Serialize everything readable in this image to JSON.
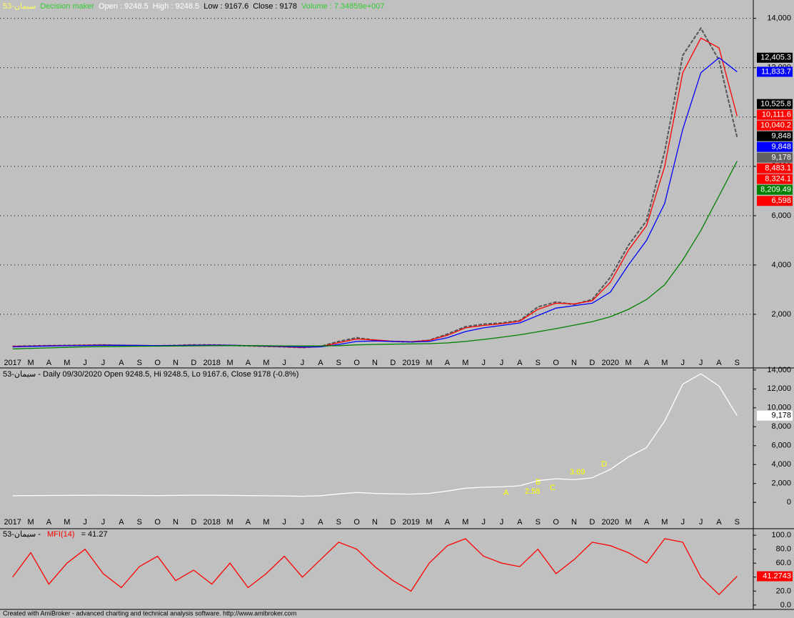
{
  "chart_data": [
    {
      "type": "line",
      "header": [
        {
          "text": "53-سیمان",
          "color": "#ffff66"
        },
        {
          "text": "Decision maker",
          "color": "#33cc33"
        },
        {
          "text": "Open : 9248.5",
          "color": "#ffffff"
        },
        {
          "text": "High : 9248.5",
          "color": "#ffffff"
        },
        {
          "text": "Low : 9167.6",
          "color": "#000000"
        },
        {
          "text": "Close : 9178",
          "color": "#000000"
        },
        {
          "text": "Volume : 7.34859e+007",
          "color": "#33cc33"
        }
      ],
      "categories": [
        "2017",
        "M",
        "A",
        "M",
        "J",
        "J",
        "A",
        "S",
        "O",
        "N",
        "D",
        "2018",
        "M",
        "A",
        "M",
        "J",
        "J",
        "A",
        "S",
        "O",
        "N",
        "D",
        "2019",
        "M",
        "A",
        "M",
        "J",
        "J",
        "A",
        "S",
        "O",
        "N",
        "D",
        "2020",
        "M",
        "A",
        "M",
        "J",
        "J",
        "A",
        "S"
      ],
      "series": [
        {
          "color": "#555555",
          "style": "dashed",
          "values": [
            700,
            720,
            730,
            740,
            750,
            760,
            740,
            730,
            720,
            740,
            760,
            760,
            740,
            720,
            700,
            680,
            650,
            700,
            900,
            1050,
            950,
            900,
            880,
            950,
            1200,
            1500,
            1600,
            1650,
            1750,
            2300,
            2500,
            2400,
            2600,
            3500,
            4800,
            5800,
            8600,
            12500,
            13600,
            12300,
            9178
          ]
        },
        {
          "color": "#ff0000",
          "style": "solid",
          "values": [
            700,
            710,
            725,
            735,
            745,
            755,
            750,
            735,
            725,
            735,
            750,
            755,
            745,
            725,
            705,
            685,
            660,
            690,
            850,
            1000,
            960,
            910,
            890,
            940,
            1150,
            1450,
            1550,
            1620,
            1720,
            2200,
            2450,
            2420,
            2550,
            3300,
            4600,
            5600,
            8000,
            11800,
            13200,
            12800,
            10040.2
          ]
        },
        {
          "color": "#0000ff",
          "style": "solid",
          "values": [
            680,
            700,
            715,
            725,
            735,
            745,
            745,
            740,
            730,
            735,
            745,
            750,
            745,
            730,
            715,
            695,
            675,
            680,
            780,
            900,
            920,
            900,
            880,
            900,
            1050,
            1300,
            1450,
            1550,
            1650,
            1950,
            2250,
            2350,
            2450,
            2900,
            4000,
            5000,
            6500,
            9500,
            11800,
            12400,
            11833.7
          ]
        },
        {
          "color": "#008000",
          "style": "solid",
          "values": [
            600,
            620,
            640,
            660,
            680,
            690,
            700,
            705,
            710,
            715,
            720,
            725,
            728,
            728,
            726,
            722,
            718,
            718,
            730,
            760,
            780,
            790,
            800,
            810,
            840,
            900,
            980,
            1070,
            1170,
            1290,
            1420,
            1560,
            1700,
            1900,
            2200,
            2600,
            3200,
            4200,
            5400,
            6800,
            8209.49
          ]
        }
      ],
      "ylim": [
        260,
        14600
      ],
      "yticks": [
        {
          "value": 2000,
          "label": "2,000"
        },
        {
          "value": 4000,
          "label": "4,000"
        },
        {
          "value": 6000,
          "label": "6,000"
        },
        {
          "value": 8000,
          "label": "8,000"
        },
        {
          "value": 10000,
          "label": "10,000"
        },
        {
          "value": 12000,
          "label": "12,000"
        },
        {
          "value": 14000,
          "label": "14,000"
        }
      ],
      "grid": true,
      "price_labels": [
        {
          "value": 12405.3,
          "label": "12,405.3",
          "color": "#000000"
        },
        {
          "value": 11833.7,
          "label": "11,833.7",
          "color": "#0000ff"
        },
        {
          "value": 10525.8,
          "label": "10,525.8",
          "color": "#000000"
        },
        {
          "value": 10111.6,
          "label": "10,111.6",
          "color": "#ff0000"
        },
        {
          "value": 10040.2,
          "label": "10,040.2",
          "color": "#ff0000"
        },
        {
          "value": 9848,
          "label": "9,848",
          "color": "#000000"
        },
        {
          "value": 9848,
          "label": "9,848",
          "color": "#0000ff"
        },
        {
          "value": 9178,
          "label": "9,178",
          "color": "#606060"
        },
        {
          "value": 8483.1,
          "label": "8,483.1",
          "color": "#ff0000"
        },
        {
          "value": 8324.1,
          "label": "8,324.1",
          "color": "#ff0000"
        },
        {
          "value": 8209.49,
          "label": "8,209.49",
          "color": "#008000"
        },
        {
          "value": 6598,
          "label": "6,598",
          "color": "#ff0000"
        }
      ]
    },
    {
      "type": "line",
      "header": [
        {
          "text": "53-سیمان - Daily 09/30/2020 Open 9248.5, Hi 9248.5, Lo 9167.6, Close 9178 (-0.8%)",
          "color": "#000000"
        }
      ],
      "categories": [
        "2017",
        "M",
        "A",
        "M",
        "J",
        "J",
        "A",
        "S",
        "O",
        "N",
        "D",
        "2018",
        "M",
        "A",
        "M",
        "J",
        "J",
        "A",
        "S",
        "O",
        "N",
        "D",
        "2019",
        "M",
        "A",
        "M",
        "J",
        "J",
        "A",
        "S",
        "O",
        "N",
        "D",
        "2020",
        "M",
        "A",
        "M",
        "J",
        "J",
        "A",
        "S"
      ],
      "series": [
        {
          "color": "#ffffff",
          "style": "solid",
          "values": [
            700,
            720,
            730,
            740,
            750,
            760,
            740,
            730,
            720,
            740,
            760,
            760,
            740,
            720,
            700,
            680,
            650,
            700,
            900,
            1050,
            950,
            900,
            880,
            950,
            1200,
            1500,
            1600,
            1650,
            1750,
            2300,
            2500,
            2400,
            2600,
            3500,
            4800,
            5800,
            8600,
            12500,
            13600,
            12300,
            9178
          ]
        }
      ],
      "ylim": [
        -1420,
        14140
      ],
      "yticks": [
        0,
        {
          "value": 2000,
          "label": "2,000"
        },
        {
          "value": 4000,
          "label": "4,000"
        },
        {
          "value": 6000,
          "label": "6,000"
        },
        {
          "value": 8000,
          "label": "8,000"
        },
        {
          "value": 10000,
          "label": "10,000"
        },
        {
          "value": 12000,
          "label": "12,000"
        },
        {
          "value": 14000,
          "label": "14,000"
        }
      ],
      "grid": false,
      "price_labels": [
        {
          "value": 9178,
          "label": "9,178",
          "color": "#ffffff"
        }
      ],
      "annotations": [
        "A",
        "2.58",
        "B",
        "C",
        "3.69",
        "D"
      ]
    },
    {
      "type": "line",
      "header": [
        {
          "text": "53-سیمان - ",
          "color": "#000000"
        },
        {
          "text": "MFI(14)",
          "color": "#ff0000"
        },
        {
          "text": " = 41.27",
          "color": "#000000"
        }
      ],
      "series": [
        {
          "color": "#ff0000",
          "style": "solid",
          "values": [
            40,
            75,
            30,
            60,
            80,
            45,
            25,
            55,
            70,
            35,
            50,
            30,
            60,
            25,
            45,
            70,
            40,
            65,
            90,
            80,
            55,
            35,
            20,
            60,
            85,
            95,
            70,
            60,
            55,
            80,
            45,
            65,
            90,
            85,
            75,
            60,
            95,
            90,
            40,
            15,
            41.27
          ]
        }
      ],
      "ylim": [
        -5.2,
        108.3
      ],
      "yticks": [
        {
          "value": 0,
          "label": "0.0"
        },
        {
          "value": 20,
          "label": "20.0"
        },
        {
          "value": 40,
          "label": "40.0"
        },
        {
          "value": 60,
          "label": "60.0"
        },
        {
          "value": 80,
          "label": "80.0"
        },
        {
          "value": 100,
          "label": "100.0"
        }
      ],
      "grid": false,
      "price_labels": [
        {
          "value": 41.2743,
          "label": "41.2743",
          "color": "#ff0000"
        }
      ]
    }
  ],
  "footer": "Created with AmiBroker - advanced charting and technical analysis software. http://www.amibroker.com"
}
